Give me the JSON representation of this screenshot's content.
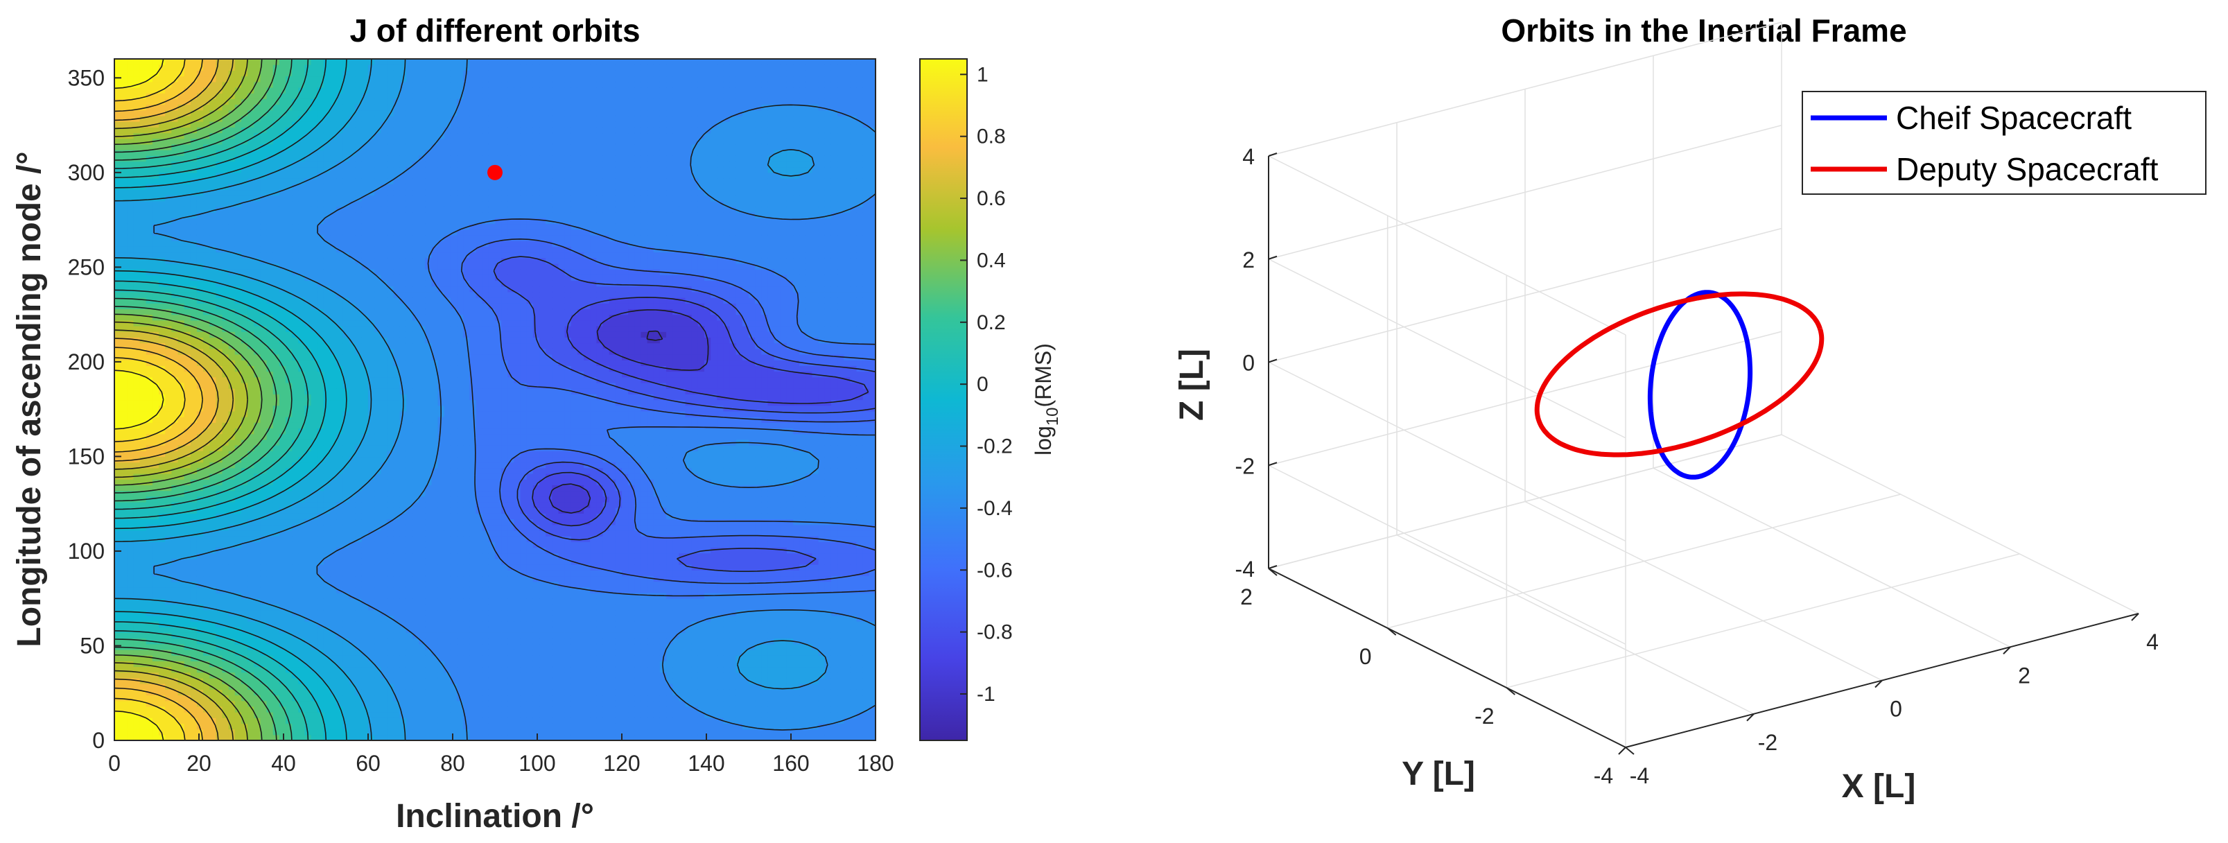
{
  "chart_data": [
    {
      "type": "heatmap",
      "subtype": "filled-contour",
      "title": "J of different orbits",
      "xlabel": "Inclination /°",
      "ylabel": "Longitude of ascending node /°",
      "xlim": [
        0,
        180
      ],
      "ylim": [
        0,
        360
      ],
      "xticks": [
        0,
        20,
        40,
        60,
        80,
        100,
        120,
        140,
        160,
        180
      ],
      "yticks": [
        0,
        50,
        100,
        150,
        200,
        250,
        300,
        350
      ],
      "marker": {
        "x": 90,
        "y": 300,
        "color": "#ff0000"
      },
      "colorbar": {
        "label_prefix": "log",
        "label_sub": "10",
        "label_suffix": "(RMS)",
        "range": [
          -1.15,
          1.05
        ],
        "ticks": [
          "1",
          "0.8",
          "0.6",
          "0.4",
          "0.2",
          "0",
          "-0.2",
          "-0.4",
          "-0.6",
          "-0.8",
          "-1"
        ],
        "tick_values": [
          1,
          0.8,
          0.6,
          0.4,
          0.2,
          0,
          -0.2,
          -0.4,
          -0.6,
          -0.8,
          -1
        ],
        "colormap": "parula"
      },
      "contour_levels": [
        -1.0,
        -0.9,
        -0.8,
        -0.7,
        -0.6,
        -0.5,
        -0.4,
        -0.3,
        -0.2,
        -0.1,
        0.0,
        0.1,
        0.2,
        0.3,
        0.4,
        0.5,
        0.6,
        0.7,
        0.8,
        0.9,
        1.0
      ],
      "features": [
        {
          "description": "high values (~1) at low inclination",
          "centers_y": [
            0,
            180,
            360
          ]
        },
        {
          "description": "minimum (~-1.05) basin",
          "x": 125,
          "y": 225
        },
        {
          "description": "minimum (~-1.0) basin",
          "x": 105,
          "y": 130
        }
      ]
    },
    {
      "type": "line",
      "subtype": "3d-orbits",
      "title": "Orbits in the Inertial Frame",
      "xlabel": "X [L]",
      "ylabel": "Y [L]",
      "zlabel": "Z [L]",
      "xlim": [
        -4,
        4
      ],
      "ylim": [
        -4,
        2
      ],
      "zlim": [
        -4,
        4
      ],
      "xticks": [
        "-4",
        "-2",
        "0",
        "2",
        "4"
      ],
      "yticks": [
        "-4",
        "-2",
        "0",
        "2"
      ],
      "zticks": [
        "4",
        "2",
        "0",
        "-2",
        "-4"
      ],
      "legend_position": "top-right",
      "series": [
        {
          "name": "Cheif Spacecraft",
          "color": "#0000ff",
          "shape": "ellipse",
          "center": [
            0,
            0,
            0
          ],
          "semi_axes": [
            1.2,
            3.6
          ],
          "tilt_deg": 6
        },
        {
          "name": "Deputy Spacecraft",
          "color": "#ee0000",
          "shape": "ellipse",
          "center": [
            0,
            0,
            0
          ],
          "semi_axes": [
            3.6,
            2.7
          ],
          "tilt_deg": -18
        }
      ]
    }
  ]
}
